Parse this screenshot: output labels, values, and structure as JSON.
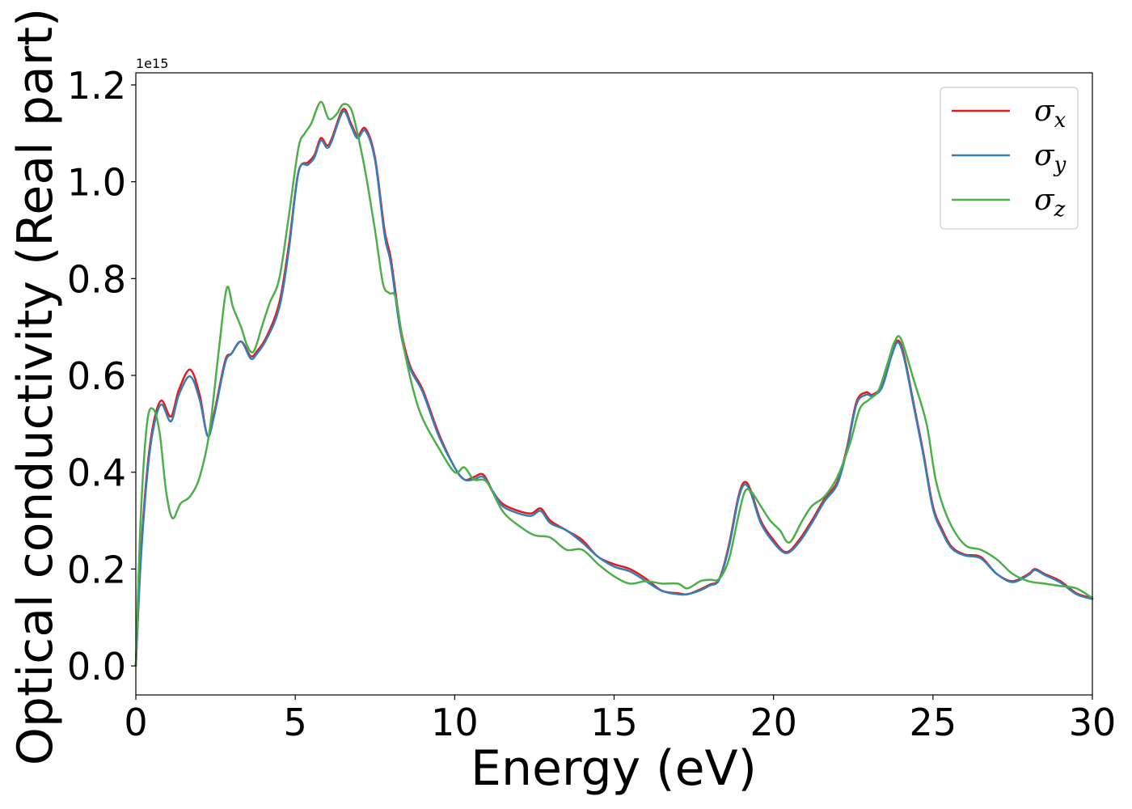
{
  "chart_data": {
    "type": "line",
    "title": "",
    "xlabel": "Energy (eV)",
    "ylabel": "Optical conductivity (Real part)",
    "y_offset_text": "1e15",
    "xlim": [
      0,
      30
    ],
    "ylim": [
      -0.06,
      1.225
    ],
    "xticks": [
      0,
      5,
      10,
      15,
      20,
      25,
      30
    ],
    "xtick_labels": [
      "0",
      "5",
      "10",
      "15",
      "20",
      "25",
      "30"
    ],
    "yticks": [
      0.0,
      0.2,
      0.4,
      0.6,
      0.8,
      1.0,
      1.2
    ],
    "ytick_labels": [
      "0.0",
      "0.2",
      "0.4",
      "0.6",
      "0.8",
      "1.0",
      "1.2"
    ],
    "grid": false,
    "legend_position": "top-right",
    "series": [
      {
        "name": "σx",
        "symbol": "σ",
        "subscript": "x",
        "color": "#e41a1c",
        "x": [
          0,
          0.15,
          0.35,
          0.55,
          0.8,
          1.1,
          1.35,
          1.7,
          2.0,
          2.25,
          2.45,
          2.8,
          3.0,
          3.3,
          3.6,
          3.8,
          4.1,
          4.5,
          4.8,
          5.1,
          5.4,
          5.6,
          5.8,
          6.0,
          6.15,
          6.5,
          6.75,
          6.95,
          7.2,
          7.5,
          7.8,
          8.0,
          8.3,
          8.6,
          9.0,
          9.5,
          10.0,
          10.3,
          10.6,
          10.9,
          11.2,
          11.5,
          12.0,
          12.4,
          12.7,
          13.0,
          13.5,
          14.0,
          14.5,
          15.0,
          15.5,
          16.0,
          16.5,
          17.0,
          17.3,
          17.7,
          18.0,
          18.3,
          18.6,
          18.9,
          19.1,
          19.3,
          19.6,
          20.0,
          20.4,
          20.8,
          21.2,
          21.6,
          22.0,
          22.3,
          22.6,
          22.9,
          23.1,
          23.4,
          23.7,
          23.9,
          24.1,
          24.4,
          24.7,
          25.0,
          25.3,
          25.6,
          26.0,
          26.5,
          27.0,
          27.5,
          28.0,
          28.2,
          28.5,
          29.0,
          29.5,
          30.0
        ],
        "values": [
          0.0,
          0.22,
          0.4,
          0.5,
          0.548,
          0.515,
          0.57,
          0.612,
          0.56,
          0.475,
          0.52,
          0.63,
          0.645,
          0.67,
          0.64,
          0.65,
          0.68,
          0.75,
          0.87,
          1.02,
          1.04,
          1.055,
          1.09,
          1.075,
          1.09,
          1.15,
          1.12,
          1.095,
          1.11,
          1.05,
          0.9,
          0.84,
          0.7,
          0.62,
          0.57,
          0.48,
          0.41,
          0.385,
          0.39,
          0.395,
          0.36,
          0.335,
          0.32,
          0.315,
          0.325,
          0.3,
          0.28,
          0.26,
          0.225,
          0.21,
          0.2,
          0.18,
          0.155,
          0.15,
          0.148,
          0.158,
          0.168,
          0.18,
          0.25,
          0.35,
          0.38,
          0.36,
          0.3,
          0.26,
          0.235,
          0.26,
          0.3,
          0.345,
          0.38,
          0.45,
          0.545,
          0.565,
          0.56,
          0.58,
          0.645,
          0.672,
          0.64,
          0.54,
          0.44,
          0.33,
          0.28,
          0.245,
          0.23,
          0.225,
          0.19,
          0.175,
          0.19,
          0.2,
          0.19,
          0.175,
          0.15,
          0.14
        ]
      },
      {
        "name": "σy",
        "symbol": "σ",
        "subscript": "y",
        "color": "#377eb8",
        "x": [
          0,
          0.15,
          0.35,
          0.55,
          0.8,
          1.1,
          1.35,
          1.7,
          2.0,
          2.25,
          2.45,
          2.8,
          3.0,
          3.3,
          3.6,
          3.8,
          4.1,
          4.5,
          4.8,
          5.1,
          5.4,
          5.6,
          5.8,
          6.0,
          6.15,
          6.5,
          6.75,
          6.95,
          7.2,
          7.5,
          7.8,
          8.0,
          8.3,
          8.6,
          9.0,
          9.5,
          10.0,
          10.3,
          10.6,
          10.9,
          11.2,
          11.5,
          12.0,
          12.4,
          12.7,
          13.0,
          13.5,
          14.0,
          14.5,
          15.0,
          15.5,
          16.0,
          16.5,
          17.0,
          17.3,
          17.7,
          18.0,
          18.3,
          18.6,
          18.9,
          19.1,
          19.3,
          19.6,
          20.0,
          20.4,
          20.8,
          21.2,
          21.6,
          22.0,
          22.3,
          22.6,
          22.9,
          23.1,
          23.4,
          23.7,
          23.9,
          24.1,
          24.4,
          24.7,
          25.0,
          25.3,
          25.6,
          26.0,
          26.5,
          27.0,
          27.5,
          28.0,
          28.2,
          28.5,
          29.0,
          29.5,
          30.0
        ],
        "values": [
          0.0,
          0.21,
          0.39,
          0.49,
          0.54,
          0.505,
          0.56,
          0.598,
          0.55,
          0.475,
          0.515,
          0.625,
          0.645,
          0.67,
          0.635,
          0.645,
          0.675,
          0.74,
          0.86,
          1.02,
          1.035,
          1.05,
          1.085,
          1.07,
          1.085,
          1.145,
          1.115,
          1.09,
          1.105,
          1.045,
          0.89,
          0.83,
          0.69,
          0.615,
          0.565,
          0.475,
          0.41,
          0.385,
          0.385,
          0.39,
          0.36,
          0.33,
          0.315,
          0.31,
          0.32,
          0.295,
          0.28,
          0.255,
          0.225,
          0.205,
          0.195,
          0.175,
          0.155,
          0.148,
          0.148,
          0.156,
          0.166,
          0.178,
          0.245,
          0.345,
          0.375,
          0.355,
          0.295,
          0.255,
          0.233,
          0.255,
          0.295,
          0.34,
          0.375,
          0.445,
          0.54,
          0.56,
          0.558,
          0.575,
          0.64,
          0.668,
          0.635,
          0.535,
          0.435,
          0.325,
          0.275,
          0.242,
          0.228,
          0.222,
          0.19,
          0.173,
          0.188,
          0.198,
          0.188,
          0.172,
          0.148,
          0.138
        ]
      },
      {
        "name": "σz",
        "symbol": "σ",
        "subscript": "z",
        "color": "#4daf4a",
        "x": [
          0,
          0.15,
          0.35,
          0.55,
          0.75,
          0.95,
          1.15,
          1.4,
          1.7,
          2.0,
          2.3,
          2.6,
          2.85,
          3.05,
          3.3,
          3.5,
          3.7,
          3.95,
          4.2,
          4.5,
          4.8,
          5.1,
          5.3,
          5.5,
          5.8,
          6.05,
          6.3,
          6.5,
          6.75,
          6.95,
          7.2,
          7.5,
          7.75,
          7.95,
          8.15,
          8.4,
          8.7,
          9.0,
          9.5,
          10.0,
          10.3,
          10.6,
          11.0,
          11.5,
          12.0,
          12.5,
          13.0,
          13.5,
          14.0,
          14.5,
          15.0,
          15.5,
          16.0,
          16.5,
          17.0,
          17.3,
          17.7,
          18.0,
          18.3,
          18.6,
          18.9,
          19.1,
          19.3,
          19.6,
          19.9,
          20.2,
          20.5,
          20.9,
          21.2,
          21.6,
          22.0,
          22.4,
          22.7,
          23.0,
          23.3,
          23.6,
          23.8,
          24.0,
          24.4,
          24.8,
          25.1,
          25.5,
          26.0,
          26.5,
          27.0,
          27.5,
          28.0,
          28.5,
          29.0,
          29.5,
          30.0
        ],
        "values": [
          0.0,
          0.3,
          0.5,
          0.53,
          0.48,
          0.36,
          0.305,
          0.335,
          0.35,
          0.39,
          0.48,
          0.65,
          0.78,
          0.74,
          0.7,
          0.66,
          0.65,
          0.7,
          0.75,
          0.8,
          0.93,
          1.07,
          1.1,
          1.12,
          1.165,
          1.13,
          1.14,
          1.16,
          1.15,
          1.1,
          1.02,
          0.9,
          0.79,
          0.77,
          0.76,
          0.66,
          0.57,
          0.51,
          0.45,
          0.4,
          0.41,
          0.385,
          0.38,
          0.32,
          0.29,
          0.27,
          0.265,
          0.24,
          0.24,
          0.21,
          0.185,
          0.17,
          0.175,
          0.17,
          0.17,
          0.16,
          0.175,
          0.178,
          0.18,
          0.22,
          0.31,
          0.36,
          0.36,
          0.33,
          0.3,
          0.28,
          0.255,
          0.3,
          0.33,
          0.35,
          0.39,
          0.46,
          0.53,
          0.55,
          0.57,
          0.63,
          0.67,
          0.675,
          0.59,
          0.5,
          0.38,
          0.3,
          0.25,
          0.24,
          0.22,
          0.19,
          0.175,
          0.17,
          0.165,
          0.16,
          0.14
        ]
      }
    ]
  }
}
